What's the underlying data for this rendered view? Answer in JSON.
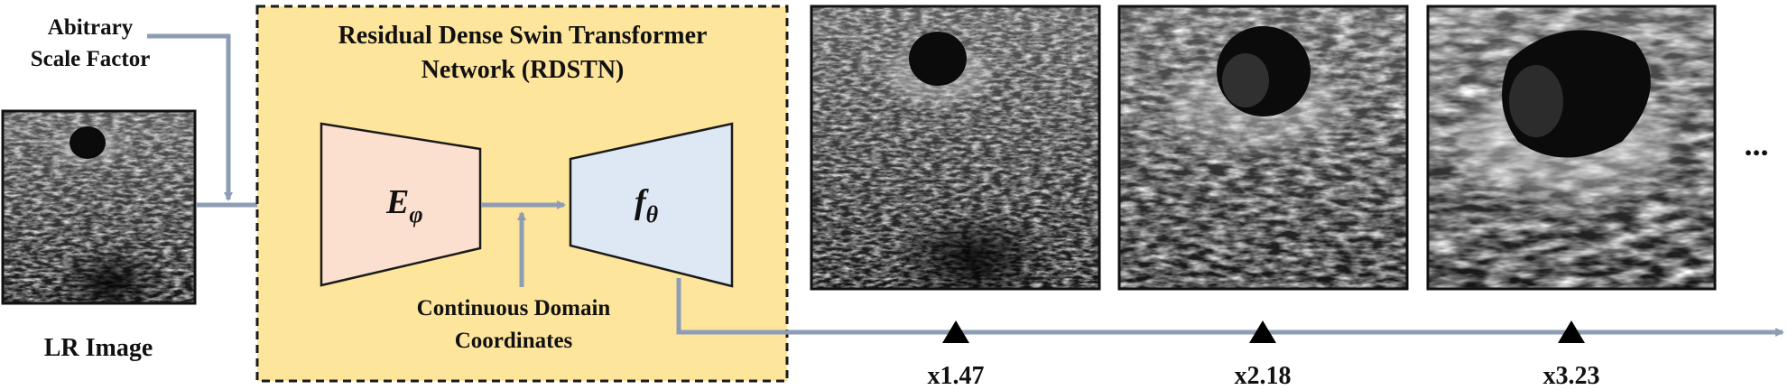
{
  "colors": {
    "arrow": "#8e9db6",
    "network_fill": "#fde59c",
    "encoder_fill": "#fbe0cf",
    "decoder_fill": "#dde8f4",
    "outline": "#1a1a1a"
  },
  "labels": {
    "scale_factor_line1": "Abitrary",
    "scale_factor_line2": "Scale Factor",
    "lr_image": "LR Image",
    "network_title_line1": "Residual Dense Swin Transformer",
    "network_title_line2": "Network (RDSTN)",
    "coords_line1": "Continuous Domain",
    "coords_line2": "Coordinates",
    "ellipsis": "..."
  },
  "encoder": {
    "symbol": "E",
    "subscript": "φ"
  },
  "decoder": {
    "symbol": "f",
    "subscript": "θ"
  },
  "outputs": [
    {
      "scale": "x1.47"
    },
    {
      "scale": "x2.18"
    },
    {
      "scale": "x3.23"
    }
  ],
  "icons": {
    "lr_image": "ultrasound-image-icon",
    "sr_output": "ultrasound-image-icon",
    "scale_marker": "triangle-up-icon"
  }
}
